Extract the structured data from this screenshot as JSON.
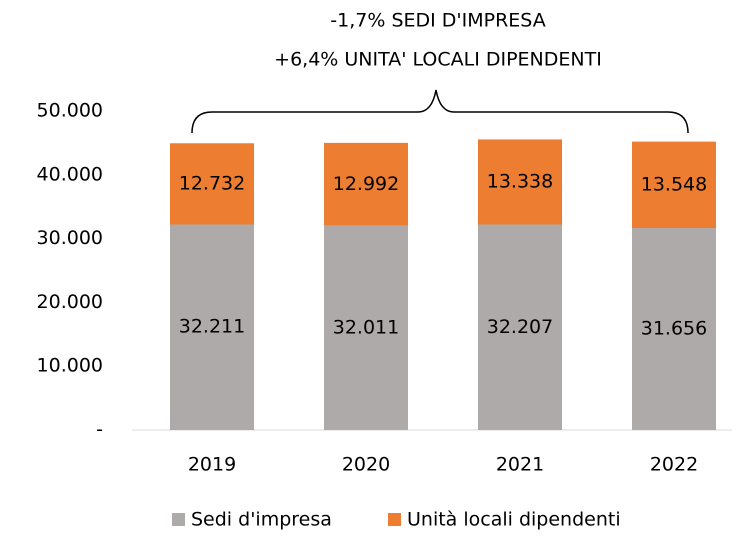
{
  "chart_data": {
    "type": "stacked_bar",
    "annotations": [
      "-1,7% SEDI D'IMPRESA",
      "+6,4% UNITA' LOCALI DIPENDENTI"
    ],
    "categories": [
      "2019",
      "2020",
      "2021",
      "2022"
    ],
    "series": [
      {
        "name": "Sedi d'impresa",
        "color": "#aeaaaa",
        "values": [
          32211,
          32011,
          32207,
          31656
        ],
        "value_labels": [
          "32.211",
          "32.011",
          "32.207",
          "31.656"
        ]
      },
      {
        "name": "Unità locali dipendenti",
        "color": "#ed7d31",
        "values": [
          12732,
          12992,
          13338,
          13548
        ],
        "value_labels": [
          "12.732",
          "12.992",
          "13.338",
          "13.548"
        ]
      }
    ],
    "ylim": [
      0,
      50000
    ],
    "yticks": [
      {
        "value": 0,
        "label": "-"
      },
      {
        "value": 10000,
        "label": "10.000"
      },
      {
        "value": 20000,
        "label": "20.000"
      },
      {
        "value": 30000,
        "label": "30.000"
      },
      {
        "value": 40000,
        "label": "40.000"
      },
      {
        "value": 50000,
        "label": "50.000"
      }
    ],
    "legend": "bottom"
  }
}
